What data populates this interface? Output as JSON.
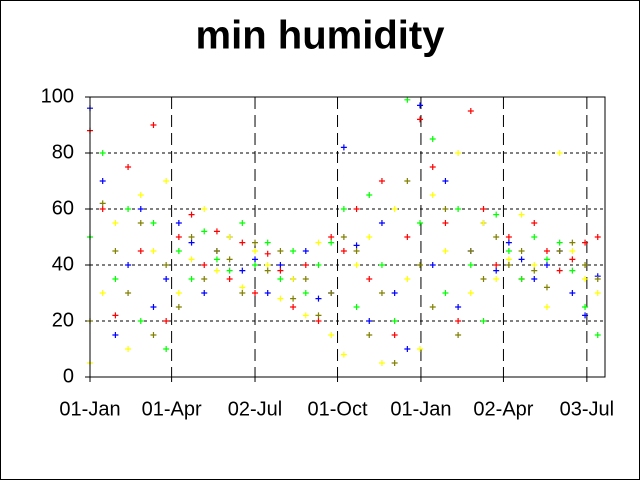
{
  "chart_data": {
    "type": "scatter",
    "title": "min humidity",
    "x": [
      0,
      14,
      28,
      42,
      56,
      70,
      84,
      98,
      112,
      126,
      140,
      154,
      168,
      182,
      196,
      210,
      224,
      238,
      252,
      266,
      280,
      294,
      308,
      322,
      336,
      350,
      364,
      378,
      392,
      406,
      420,
      434,
      448,
      462,
      476,
      490,
      504,
      518,
      532,
      546,
      560
    ],
    "series": [
      {
        "color": "#0000ff",
        "values": [
          96,
          70,
          15,
          40,
          60,
          25,
          35,
          55,
          48,
          30,
          45,
          50,
          38,
          42,
          30,
          40,
          35,
          45,
          28,
          30,
          82,
          47,
          20,
          55,
          30,
          10,
          97,
          40,
          70,
          25,
          45,
          55,
          38,
          48,
          42,
          35,
          40,
          45,
          30,
          22,
          36
        ]
      },
      {
        "color": "#ff0000",
        "values": [
          88,
          60,
          22,
          75,
          45,
          90,
          20,
          50,
          58,
          40,
          52,
          35,
          48,
          30,
          44,
          38,
          25,
          40,
          20,
          50,
          45,
          60,
          35,
          70,
          15,
          50,
          92,
          75,
          55,
          20,
          95,
          60,
          40,
          50,
          35,
          55,
          45,
          38,
          42,
          48,
          50
        ]
      },
      {
        "color": "#ffff00",
        "values": [
          5,
          30,
          55,
          10,
          65,
          45,
          70,
          30,
          42,
          60,
          38,
          50,
          32,
          45,
          40,
          28,
          35,
          22,
          48,
          15,
          8,
          40,
          50,
          5,
          60,
          35,
          10,
          65,
          45,
          80,
          30,
          55,
          35,
          42,
          58,
          40,
          25,
          80,
          45,
          35,
          30
        ]
      },
      {
        "color": "#00ff00",
        "values": [
          50,
          80,
          35,
          60,
          20,
          55,
          10,
          45,
          35,
          52,
          42,
          38,
          55,
          40,
          48,
          35,
          45,
          30,
          40,
          48,
          60,
          25,
          65,
          40,
          20,
          99,
          55,
          85,
          30,
          60,
          40,
          20,
          58,
          45,
          35,
          50,
          42,
          48,
          38,
          25,
          15
        ]
      },
      {
        "color": "#808000",
        "values": [
          20,
          62,
          45,
          30,
          55,
          15,
          40,
          25,
          50,
          35,
          45,
          42,
          30,
          48,
          38,
          45,
          28,
          35,
          22,
          30,
          50,
          45,
          15,
          30,
          5,
          70,
          40,
          25,
          60,
          15,
          45,
          35,
          50,
          40,
          45,
          38,
          32,
          45,
          48,
          40,
          35
        ]
      }
    ],
    "xlim": [
      0,
      568
    ],
    "xticks": [
      {
        "value": 0,
        "label": "01-Jan"
      },
      {
        "value": 90,
        "label": "01-Apr"
      },
      {
        "value": 182,
        "label": "02-Jul"
      },
      {
        "value": 273,
        "label": "01-Oct"
      },
      {
        "value": 365,
        "label": "01-Jan"
      },
      {
        "value": 456,
        "label": "02-Apr"
      },
      {
        "value": 548,
        "label": "03-Jul"
      }
    ],
    "ylim": [
      0,
      100
    ],
    "yticks": [
      0,
      20,
      40,
      60,
      80,
      100
    ],
    "grid": true
  }
}
